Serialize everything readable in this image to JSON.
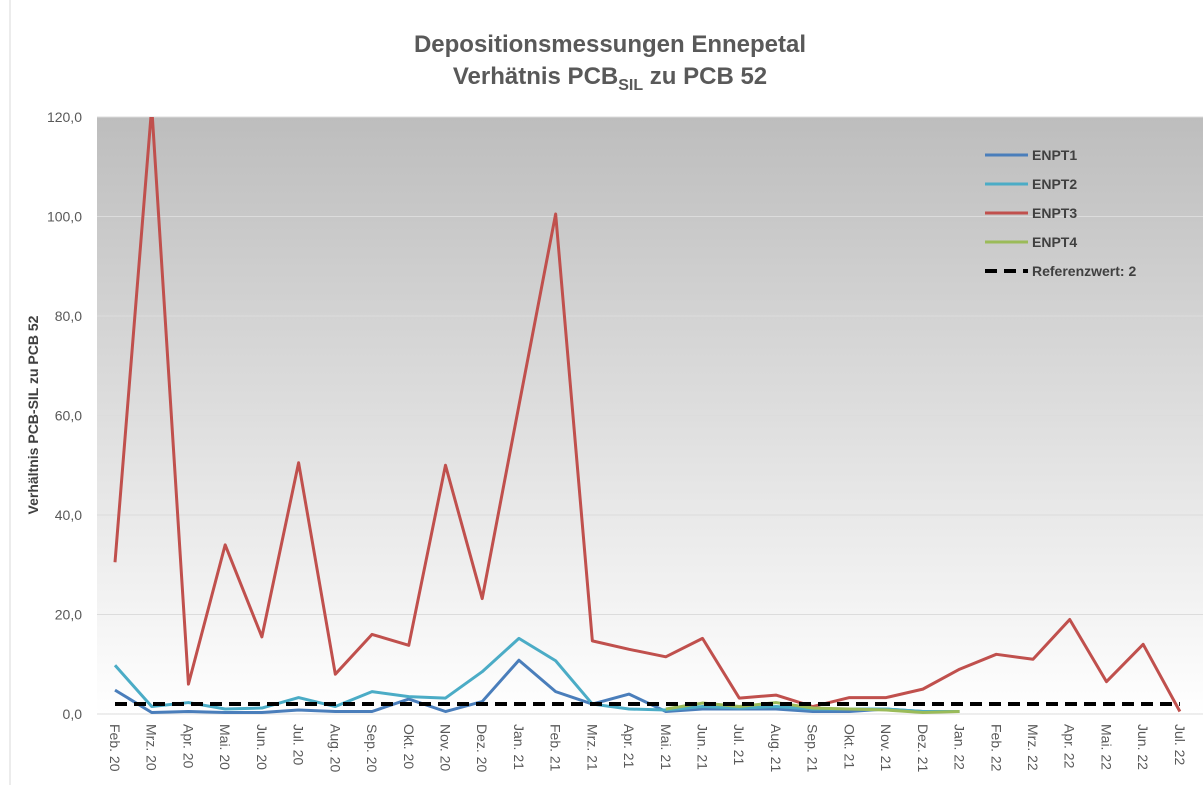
{
  "chart_data": {
    "type": "line",
    "title": "Depositionsmessungen Ennepetal",
    "subtitle_parts": [
      "Verhätnis PCB",
      "SIL",
      " zu PCB 52"
    ],
    "y_label": "Verhältnis PCB-SIL zu PCB 52",
    "categories": [
      "Feb. 20",
      "Mrz. 20",
      "Apr. 20",
      "Mai. 20",
      "Jun. 20",
      "Jul. 20",
      "Aug. 20",
      "Sep. 20",
      "Okt. 20",
      "Nov. 20",
      "Dez. 20",
      "Jan. 21",
      "Feb. 21",
      "Mrz. 21",
      "Apr. 21",
      "Mai. 21",
      "Jun. 21",
      "Jul. 21",
      "Aug. 21",
      "Sep. 21",
      "Okt. 21",
      "Nov. 21",
      "Dez. 21",
      "Jan. 22",
      "Feb. 22",
      "Mrz. 22",
      "Apr. 22",
      "Mai. 22",
      "Jun. 22",
      "Jul. 22"
    ],
    "series": [
      {
        "name": "ENPT1",
        "color": "#4a7ebb",
        "values": [
          4.8,
          0.3,
          0.5,
          0.3,
          0.3,
          0.8,
          0.5,
          0.5,
          3,
          0.5,
          2.5,
          10.8,
          4.5,
          2,
          4,
          0.5,
          1,
          1,
          1,
          0.5,
          0.5,
          1,
          0.5,
          0.5,
          null,
          null,
          null,
          null,
          null,
          null
        ]
      },
      {
        "name": "ENPT2",
        "color": "#4bacc6",
        "values": [
          9.8,
          1.5,
          2.3,
          1,
          1.2,
          3.3,
          1.5,
          4.5,
          3.5,
          3.2,
          8.5,
          15.2,
          10.7,
          2,
          1,
          0.8,
          1.5,
          1.2,
          1.5,
          1,
          1,
          1,
          0.5,
          0.5,
          null,
          null,
          null,
          null,
          null,
          null
        ]
      },
      {
        "name": "ENPT3",
        "color": "#c0504d",
        "values": [
          30.5,
          122,
          6,
          34,
          15.5,
          50.5,
          8,
          16,
          13.8,
          50,
          23.2,
          62,
          100.5,
          14.7,
          13,
          11.5,
          15.2,
          3.2,
          3.8,
          1.5,
          3.3,
          3.3,
          5,
          9,
          12,
          11,
          19,
          6.5,
          14,
          0.5
        ]
      },
      {
        "name": "ENPT4",
        "color": "#9bbb59",
        "values": [
          null,
          null,
          null,
          null,
          null,
          null,
          null,
          null,
          null,
          null,
          null,
          null,
          null,
          null,
          null,
          1,
          2.2,
          1.5,
          2.3,
          1.2,
          1,
          0.8,
          0.3,
          0.5,
          null,
          null,
          null,
          null,
          null,
          null
        ]
      },
      {
        "name": "Referenzwert: 2",
        "color": "#000000",
        "linestyle": "dashed",
        "values": [
          2,
          2,
          2,
          2,
          2,
          2,
          2,
          2,
          2,
          2,
          2,
          2,
          2,
          2,
          2,
          2,
          2,
          2,
          2,
          2,
          2,
          2,
          2,
          2,
          2,
          2,
          2,
          2,
          2,
          2
        ]
      }
    ],
    "ylim": [
      0,
      120
    ],
    "yticks": [
      {
        "value": 0,
        "label": "0,0"
      },
      {
        "value": 20,
        "label": "20,0"
      },
      {
        "value": 40,
        "label": "40,0"
      },
      {
        "value": 60,
        "label": "60,0"
      },
      {
        "value": 80,
        "label": "80,0"
      },
      {
        "value": 100,
        "label": "100,0"
      },
      {
        "value": 120,
        "label": "120,0"
      }
    ],
    "grid": true,
    "legend": "upper right"
  }
}
